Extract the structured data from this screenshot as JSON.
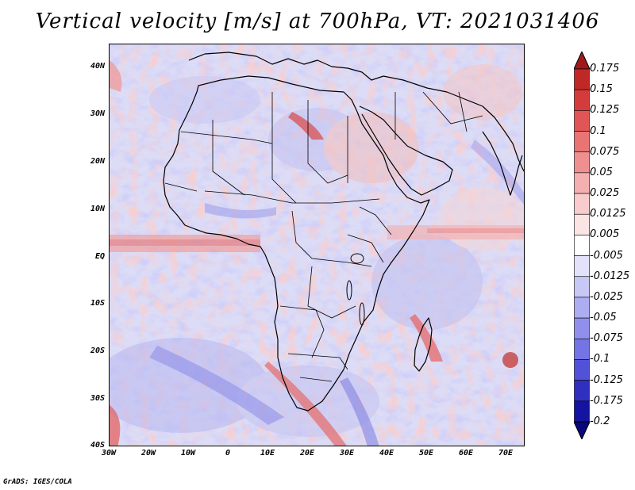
{
  "title": "Vertical velocity [m/s] at 700hPa, VT: 2021031406",
  "credit": "GrADS: IGES/COLA",
  "map": {
    "lon_range": [
      -30,
      75
    ],
    "lat_range": [
      -40,
      45
    ],
    "lat_ticks": [
      "40N",
      "30N",
      "20N",
      "10N",
      "EQ",
      "10S",
      "20S",
      "30S",
      "40S"
    ],
    "lon_ticks": [
      "30W",
      "20W",
      "10W",
      "0",
      "10E",
      "20E",
      "30E",
      "40E",
      "50E",
      "60E",
      "70E"
    ]
  },
  "colorbar": {
    "labels": [
      "0.175",
      "0.15",
      "0.125",
      "0.1",
      "0.075",
      "0.05",
      "0.025",
      "0.0125",
      "0.005",
      "-0.005",
      "-0.0125",
      "-0.025",
      "-0.05",
      "-0.075",
      "-0.1",
      "-0.125",
      "-0.175",
      "-0.2"
    ],
    "colors": [
      "#a01a1a",
      "#c02828",
      "#d43c3c",
      "#e05656",
      "#e87474",
      "#ee9090",
      "#f4b0b0",
      "#f8cccc",
      "#fbe4e4",
      "#ffffff",
      "#e2e2fa",
      "#c8c8f6",
      "#adadf2",
      "#9090ec",
      "#7474e4",
      "#5252d8",
      "#3030c0",
      "#1414a0",
      "#08087a"
    ]
  }
}
